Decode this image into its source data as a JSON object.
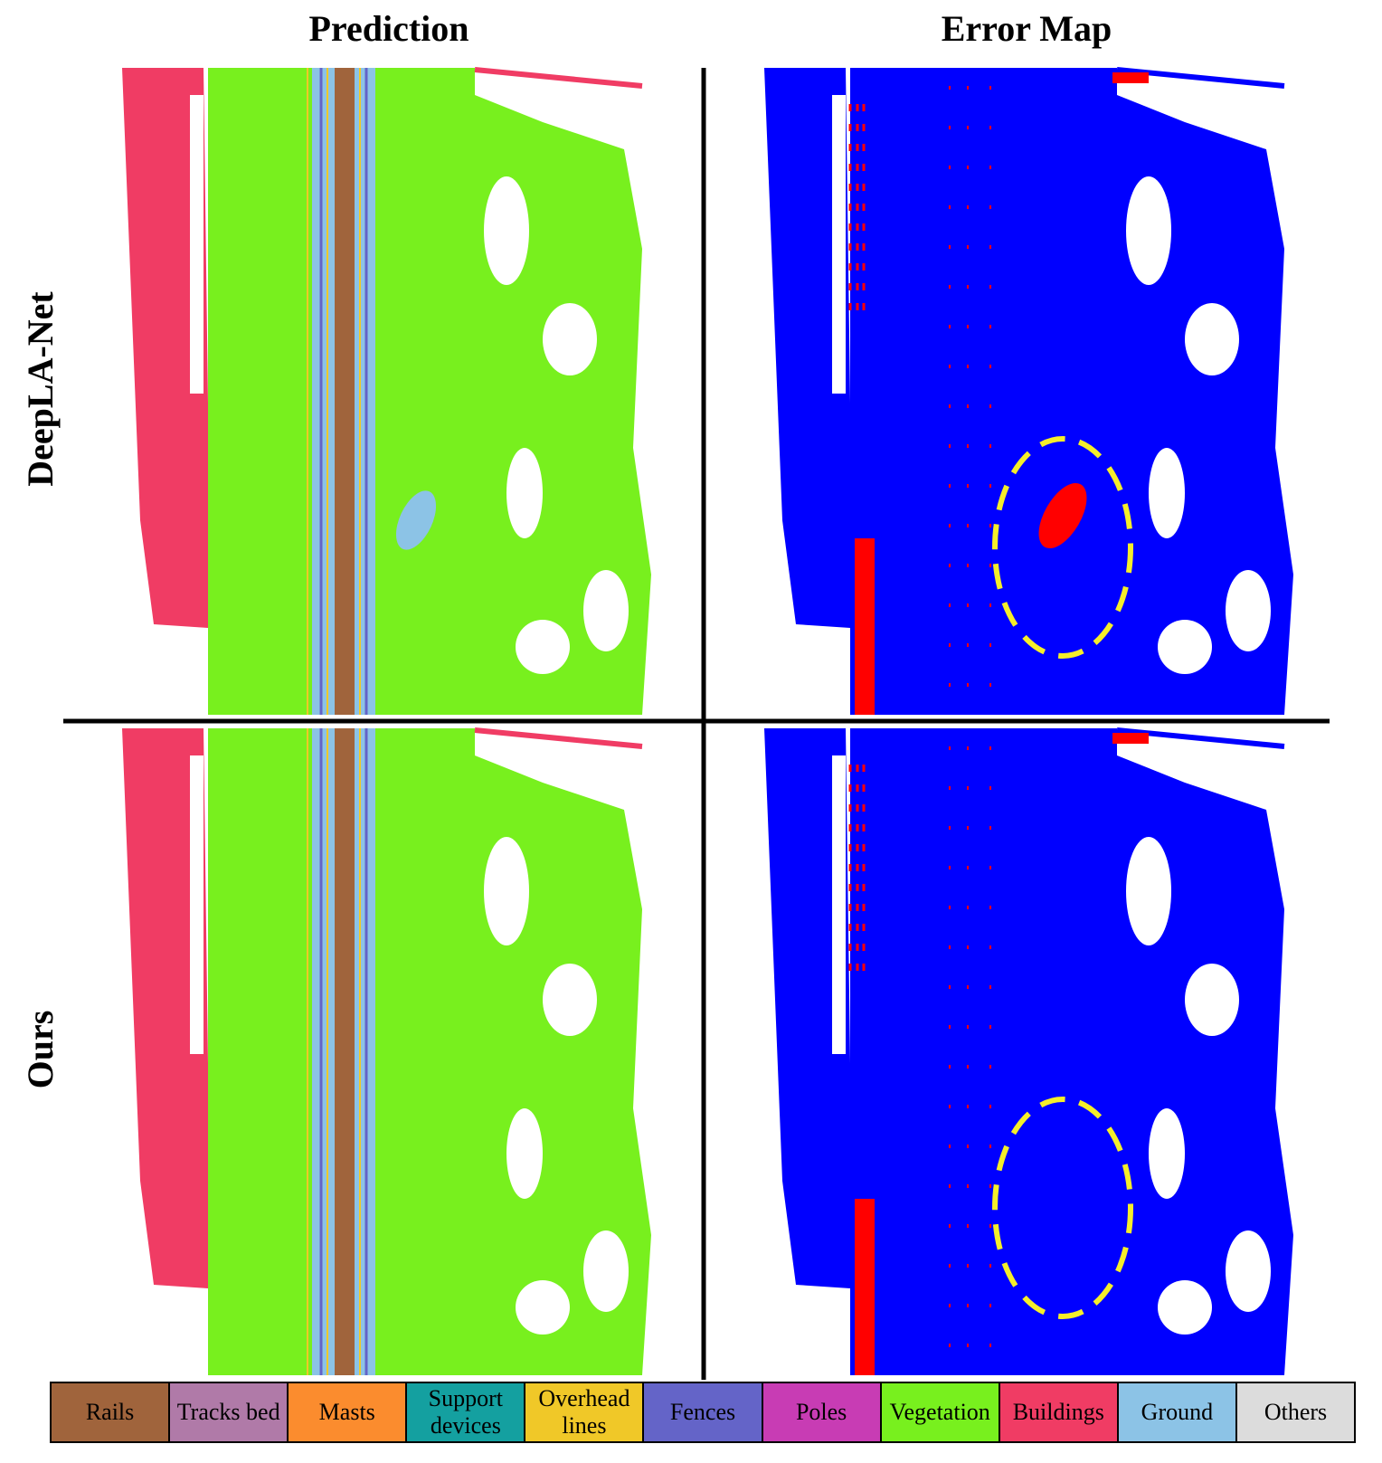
{
  "columns": [
    "Prediction",
    "Error Map"
  ],
  "rows": [
    "DeepLA-Net",
    "Ours"
  ],
  "legend": [
    {
      "label": "Rails",
      "color": "#a0643c"
    },
    {
      "label": "Tracks bed",
      "color": "#b07aa8"
    },
    {
      "label": "Masts",
      "color": "#fb8c2e"
    },
    {
      "label": "Support devices",
      "color": "#14a0a0"
    },
    {
      "label": "Overhead lines",
      "color": "#f0c828"
    },
    {
      "label": "Fences",
      "color": "#6464c8"
    },
    {
      "label": "Poles",
      "color": "#c83cb4"
    },
    {
      "label": "Vegetation",
      "color": "#78f01e"
    },
    {
      "label": "Buildings",
      "color": "#f03c64"
    },
    {
      "label": "Ground",
      "color": "#8cc3e6"
    },
    {
      "label": "Others",
      "color": "#dcdcdc"
    }
  ]
}
